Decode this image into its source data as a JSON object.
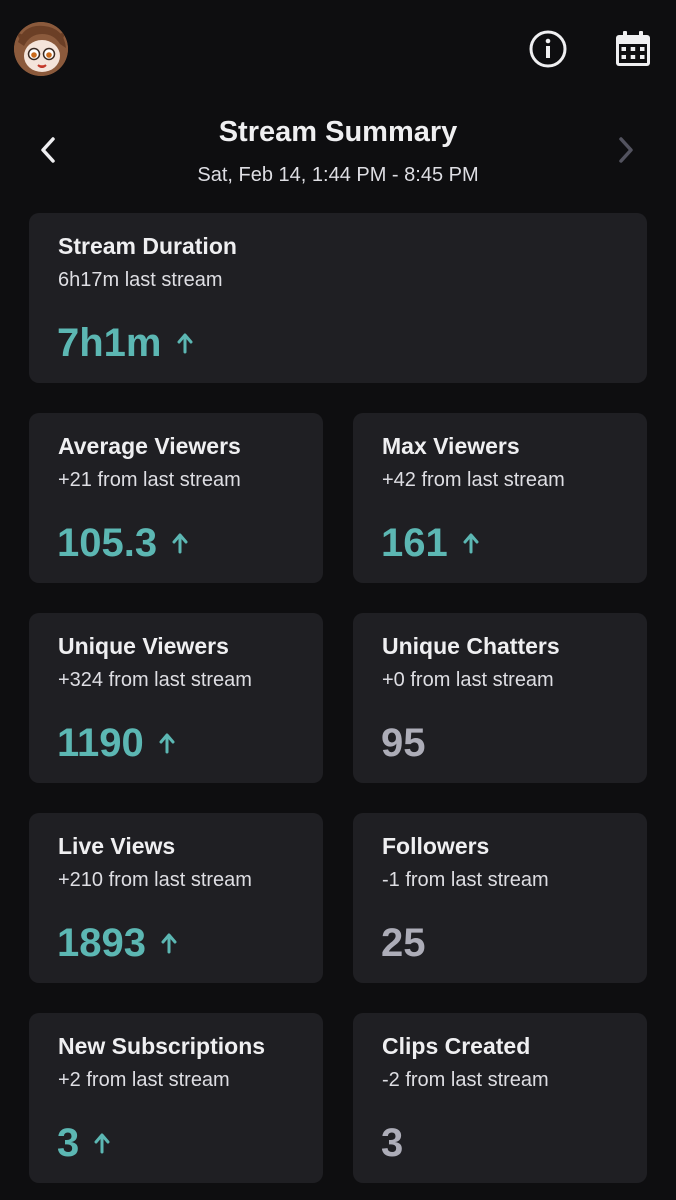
{
  "header": {
    "title": "Stream Summary",
    "date_range": "Sat, Feb 14, 1:44 PM - 8:45 PM"
  },
  "icons": {
    "info": "info-icon",
    "calendar": "calendar-icon",
    "prev": "chevron-left-icon",
    "next": "chevron-right-icon",
    "trend_up": "arrow-up-icon"
  },
  "colors": {
    "background": "#0e0e10",
    "card": "#1f1f23",
    "accent_up": "#5cb7b3",
    "neutral_value": "#adadb8"
  },
  "stats": {
    "duration": {
      "title": "Stream Duration",
      "comparison": "6h17m last stream",
      "value": "7h1m",
      "trend": "up"
    },
    "avg_viewers": {
      "title": "Average Viewers",
      "comparison": "+21 from last stream",
      "value": "105.3",
      "trend": "up"
    },
    "max_viewers": {
      "title": "Max Viewers",
      "comparison": "+42 from last stream",
      "value": "161",
      "trend": "up"
    },
    "unique_viewers": {
      "title": "Unique Viewers",
      "comparison": "+324 from last stream",
      "value": "1190",
      "trend": "up"
    },
    "unique_chatters": {
      "title": "Unique Chatters",
      "comparison": "+0 from last stream",
      "value": "95",
      "trend": "none"
    },
    "live_views": {
      "title": "Live Views",
      "comparison": "+210 from last stream",
      "value": "1893",
      "trend": "up"
    },
    "followers": {
      "title": "Followers",
      "comparison": "-1 from last stream",
      "value": "25",
      "trend": "none"
    },
    "new_subs": {
      "title": "New Subscriptions",
      "comparison": "+2 from last stream",
      "value": "3",
      "trend": "up"
    },
    "clips": {
      "title": "Clips Created",
      "comparison": "-2 from last stream",
      "value": "3",
      "trend": "none"
    }
  }
}
